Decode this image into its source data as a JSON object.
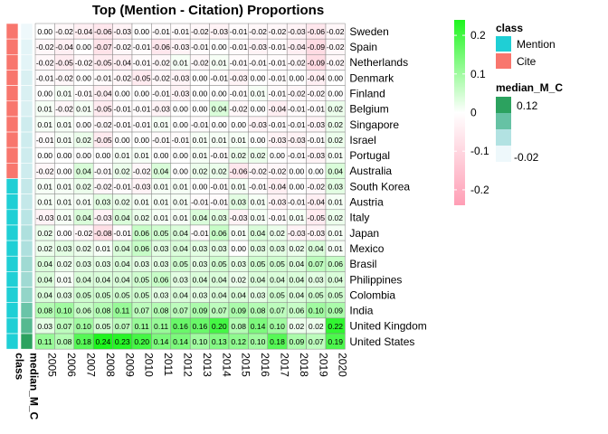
{
  "chart_data": {
    "type": "heatmap",
    "title": "Top (Mention - Citation) Proportions",
    "columns": [
      "2005",
      "2006",
      "2007",
      "2008",
      "2009",
      "2010",
      "2011",
      "2012",
      "2013",
      "2014",
      "2015",
      "2016",
      "2017",
      "2018",
      "2019",
      "2020"
    ],
    "rows": [
      {
        "country": "Sweden",
        "class": "Cite",
        "median": -0.03,
        "values": [
          -0.0,
          -0.02,
          -0.04,
          -0.06,
          -0.03,
          -0.0,
          -0.01,
          -0.01,
          -0.02,
          -0.03,
          -0.01,
          -0.02,
          -0.02,
          -0.03,
          -0.06,
          -0.02
        ]
      },
      {
        "country": "Spain",
        "class": "Cite",
        "median": -0.02,
        "values": [
          -0.02,
          -0.04,
          -0.0,
          -0.07,
          -0.02,
          -0.01,
          -0.06,
          -0.03,
          -0.01,
          -0.0,
          -0.01,
          -0.03,
          -0.01,
          -0.04,
          -0.09,
          -0.02
        ]
      },
      {
        "country": "Netherlands",
        "class": "Cite",
        "median": -0.02,
        "values": [
          -0.02,
          -0.05,
          -0.02,
          -0.05,
          -0.04,
          -0.01,
          -0.02,
          0.01,
          -0.02,
          0.01,
          -0.01,
          -0.01,
          -0.01,
          -0.02,
          -0.09,
          -0.02
        ]
      },
      {
        "country": "Denmark",
        "class": "Cite",
        "median": -0.01,
        "values": [
          -0.01,
          -0.02,
          -0.0,
          -0.01,
          -0.02,
          -0.05,
          -0.02,
          -0.03,
          -0.0,
          -0.01,
          -0.03,
          -0.0,
          -0.01,
          -0.0,
          -0.04,
          -0.0
        ]
      },
      {
        "country": "Finland",
        "class": "Cite",
        "median": -0.01,
        "values": [
          0.0,
          0.01,
          -0.01,
          -0.04,
          -0.0,
          -0.0,
          -0.01,
          -0.03,
          0.0,
          0.0,
          -0.01,
          0.01,
          -0.01,
          -0.02,
          -0.02,
          0.0
        ]
      },
      {
        "country": "Belgium",
        "class": "Cite",
        "median": -0.01,
        "values": [
          0.01,
          -0.02,
          0.01,
          -0.05,
          -0.01,
          -0.01,
          -0.03,
          -0.0,
          -0.0,
          0.04,
          -0.02,
          -0.0,
          -0.04,
          -0.01,
          -0.01,
          0.02
        ]
      },
      {
        "country": "Singapore",
        "class": "Cite",
        "median": 0.0,
        "values": [
          0.01,
          0.01,
          0.0,
          -0.02,
          -0.01,
          -0.01,
          0.01,
          -0.0,
          -0.01,
          -0.0,
          0.0,
          -0.03,
          -0.01,
          -0.01,
          -0.03,
          0.02
        ]
      },
      {
        "country": "Israel",
        "class": "Cite",
        "median": 0.0,
        "values": [
          -0.01,
          0.01,
          0.02,
          -0.05,
          0.0,
          0.0,
          -0.01,
          -0.01,
          0.01,
          0.01,
          0.01,
          0.0,
          -0.03,
          -0.03,
          -0.01,
          0.02
        ]
      },
      {
        "country": "Portugal",
        "class": "Cite",
        "median": 0.0,
        "values": [
          -0.0,
          0.0,
          -0.0,
          -0.0,
          0.01,
          0.01,
          -0.0,
          0.0,
          0.01,
          -0.01,
          0.02,
          0.02,
          -0.0,
          -0.01,
          -0.03,
          0.01
        ]
      },
      {
        "country": "Australia",
        "class": "Cite",
        "median": 0.0,
        "values": [
          -0.02,
          0.0,
          0.04,
          -0.01,
          0.02,
          -0.02,
          0.04,
          -0.0,
          0.02,
          0.02,
          -0.06,
          -0.02,
          -0.02,
          -0.0,
          -0.0,
          0.04
        ]
      },
      {
        "country": "South Korea",
        "class": "Mention",
        "median": 0.01,
        "values": [
          0.01,
          0.01,
          0.02,
          -0.02,
          -0.01,
          -0.03,
          0.01,
          0.01,
          -0.0,
          -0.01,
          0.01,
          -0.01,
          -0.04,
          -0.0,
          -0.02,
          0.03
        ]
      },
      {
        "country": "Austria",
        "class": "Mention",
        "median": 0.01,
        "values": [
          0.01,
          0.01,
          0.01,
          0.03,
          0.02,
          0.01,
          0.01,
          0.01,
          -0.01,
          -0.01,
          0.03,
          0.01,
          -0.03,
          -0.01,
          -0.04,
          0.01
        ]
      },
      {
        "country": "Italy",
        "class": "Mention",
        "median": 0.02,
        "values": [
          -0.03,
          0.01,
          0.04,
          -0.03,
          0.04,
          0.02,
          0.01,
          0.01,
          0.04,
          0.03,
          -0.03,
          0.01,
          -0.01,
          0.01,
          -0.05,
          0.02
        ]
      },
      {
        "country": "Japan",
        "class": "Mention",
        "median": 0.03,
        "values": [
          0.02,
          -0.0,
          -0.02,
          -0.08,
          -0.01,
          0.06,
          0.05,
          0.04,
          -0.01,
          0.06,
          0.01,
          0.04,
          0.02,
          -0.03,
          -0.03,
          0.01
        ]
      },
      {
        "country": "Mexico",
        "class": "Mention",
        "median": 0.03,
        "values": [
          0.02,
          0.03,
          0.02,
          0.01,
          0.04,
          0.06,
          0.03,
          0.04,
          0.03,
          0.03,
          0.0,
          0.03,
          0.03,
          0.02,
          0.04,
          0.01
        ]
      },
      {
        "country": "Brasil",
        "class": "Mention",
        "median": 0.04,
        "values": [
          0.04,
          0.02,
          0.03,
          0.03,
          0.04,
          0.03,
          0.03,
          0.05,
          0.03,
          0.05,
          0.03,
          0.05,
          0.05,
          0.04,
          0.07,
          0.06
        ]
      },
      {
        "country": "Philippines",
        "class": "Mention",
        "median": 0.04,
        "values": [
          0.04,
          0.01,
          0.04,
          0.04,
          0.04,
          0.05,
          0.06,
          0.03,
          0.04,
          0.04,
          0.02,
          0.04,
          0.04,
          0.04,
          0.03,
          0.04
        ]
      },
      {
        "country": "Colombia",
        "class": "Mention",
        "median": 0.05,
        "values": [
          0.04,
          0.03,
          0.05,
          0.05,
          0.05,
          0.05,
          0.03,
          0.04,
          0.03,
          0.04,
          0.04,
          0.03,
          0.05,
          0.04,
          0.05,
          0.05
        ]
      },
      {
        "country": "India",
        "class": "Mention",
        "median": 0.08,
        "values": [
          0.08,
          0.1,
          0.06,
          0.08,
          0.11,
          0.07,
          0.08,
          0.07,
          0.09,
          0.07,
          0.09,
          0.08,
          0.07,
          0.06,
          0.1,
          0.09
        ]
      },
      {
        "country": "United Kingdom",
        "class": "Mention",
        "median": 0.1,
        "values": [
          0.03,
          0.07,
          0.1,
          0.05,
          0.07,
          0.11,
          0.11,
          0.16,
          0.16,
          0.2,
          0.08,
          0.14,
          0.1,
          0.02,
          0.02,
          0.22
        ]
      },
      {
        "country": "United States",
        "class": "Mention",
        "median": 0.14,
        "values": [
          0.11,
          0.08,
          0.18,
          0.24,
          0.23,
          0.2,
          0.14,
          0.14,
          0.1,
          0.13,
          0.12,
          0.1,
          0.18,
          0.09,
          0.07,
          0.19
        ]
      }
    ],
    "row_annotation_labels": [
      "class",
      "median_M_C"
    ],
    "legend_value": {
      "title": "",
      "ticks": [
        0.2,
        0.1,
        0,
        -0.1,
        -0.2
      ],
      "range": [
        -0.24,
        0.24
      ],
      "low_color": "#ff9eb5",
      "mid_color": "#ffffff",
      "high_color": "#1ef51e"
    },
    "legend_class": {
      "title": "class",
      "items": [
        {
          "label": "Mention",
          "color": "#1fcfd5"
        },
        {
          "label": "Cite",
          "color": "#f8766d"
        }
      ]
    },
    "legend_median": {
      "title": "median_M_C",
      "ticks": [
        0.12,
        -0.02
      ],
      "range": [
        -0.03,
        0.14
      ],
      "colors": [
        "#eef8fb",
        "#b2e2e2",
        "#66c2a4",
        "#2ca25f"
      ]
    }
  }
}
